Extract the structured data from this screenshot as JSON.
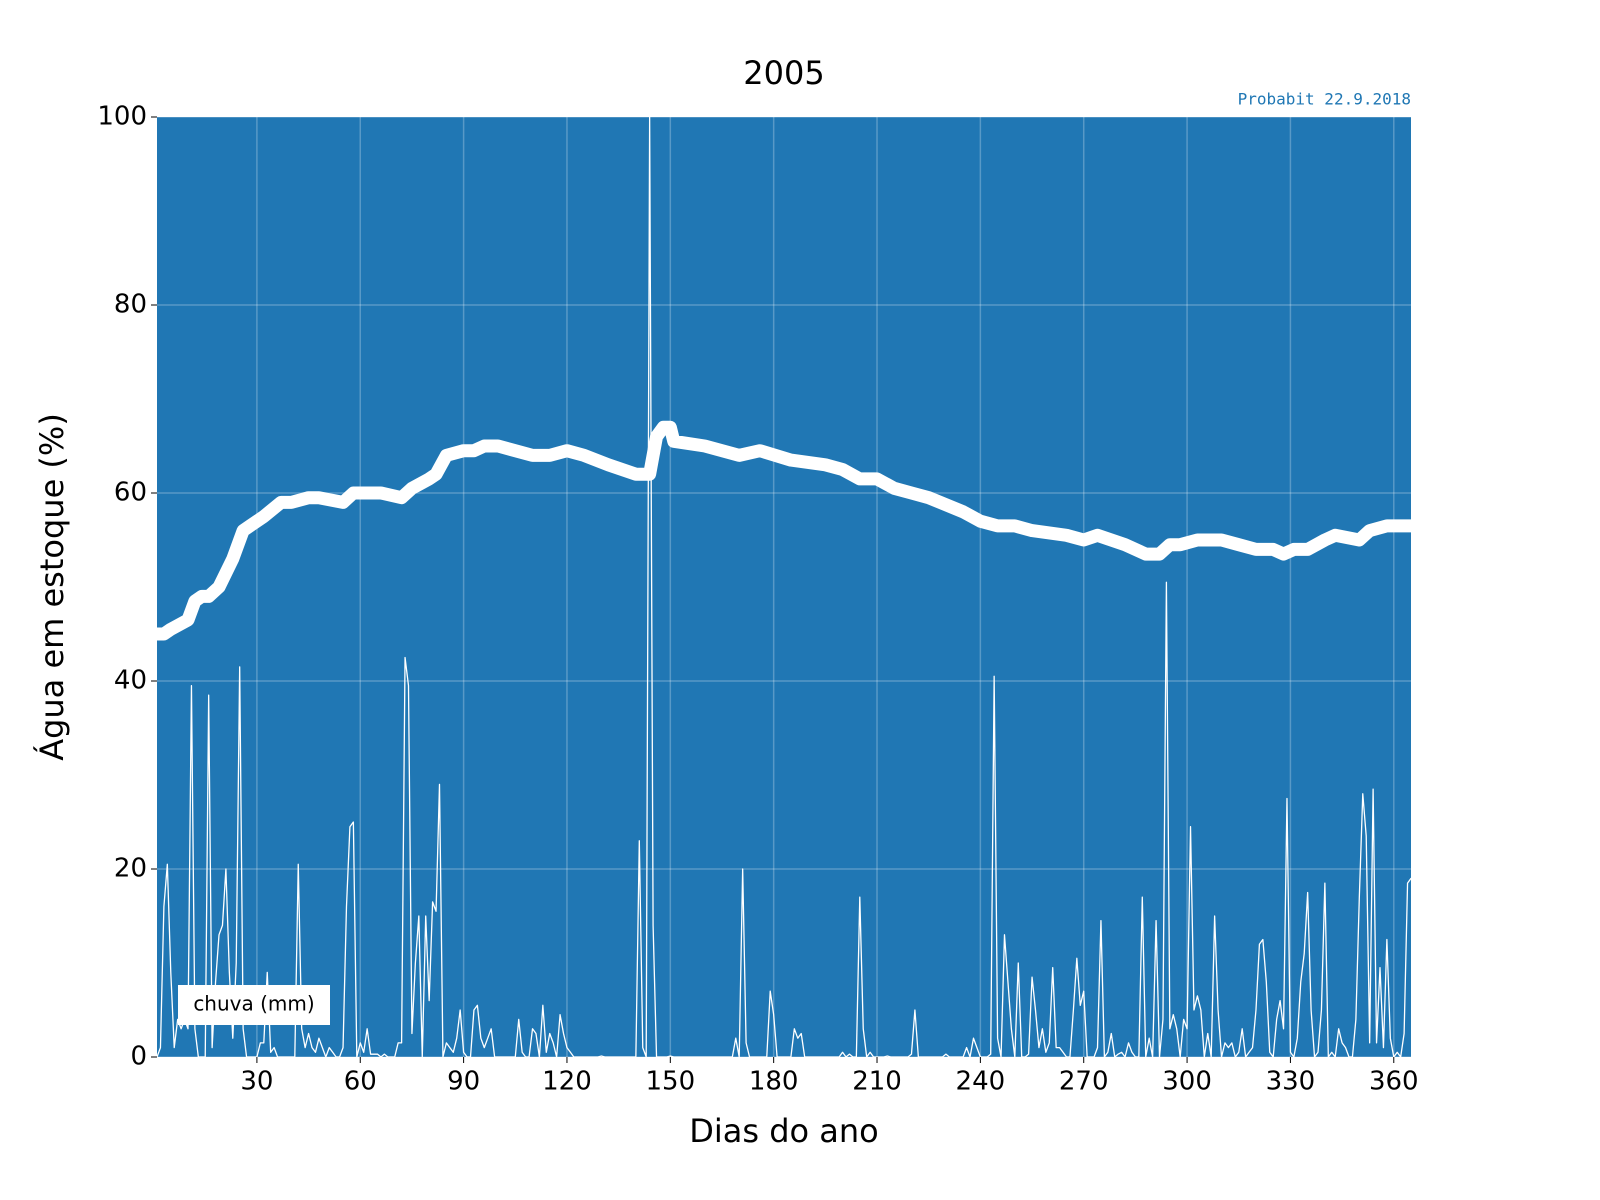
{
  "chart_data": {
    "type": "line",
    "title": "2005",
    "annotation": "Probabit 22.9.2018",
    "xlabel": "Dias do ano",
    "ylabel": "Água em estoque (%)",
    "xlim": [
      1,
      365
    ],
    "ylim": [
      0,
      100
    ],
    "xticks": [
      30,
      60,
      90,
      120,
      150,
      180,
      210,
      240,
      270,
      300,
      330,
      360
    ],
    "yticks": [
      0,
      20,
      40,
      60,
      80,
      100
    ],
    "grid": true,
    "legend": "lower left",
    "background": "#2077b4",
    "series": [
      {
        "color": "#ffffff",
        "x": [
          1,
          3,
          5,
          10,
          12,
          14,
          16,
          19,
          23,
          26,
          28,
          32,
          37,
          40,
          45,
          48,
          55,
          58,
          62,
          66,
          72,
          75,
          80,
          82,
          85,
          90,
          93,
          96,
          100,
          110,
          115,
          120,
          125,
          132,
          140,
          144,
          146,
          148,
          150,
          151,
          160,
          170,
          176,
          185,
          195,
          200,
          205,
          210,
          215,
          220,
          225,
          235,
          240,
          245,
          250,
          255,
          265,
          270,
          274,
          282,
          288,
          292,
          295,
          298,
          303,
          307,
          310,
          315,
          320,
          325,
          328,
          331,
          335,
          340,
          343,
          350,
          353,
          358,
          361,
          365
        ],
        "values": [
          45,
          45,
          45.5,
          46.5,
          48.5,
          49,
          49,
          50,
          53,
          56,
          56.5,
          57.5,
          59,
          59,
          59.5,
          59.5,
          59,
          60,
          60,
          60,
          59.5,
          60.5,
          61.5,
          62,
          64,
          64.5,
          64.5,
          65,
          65,
          64,
          64,
          64.5,
          64,
          63,
          62,
          62,
          66,
          67,
          67,
          65.5,
          65,
          64,
          64.5,
          63.5,
          63,
          62.5,
          61.5,
          61.5,
          60.5,
          60,
          59.5,
          58,
          57,
          56.5,
          56.5,
          56,
          55.5,
          55,
          55.5,
          54.5,
          53.5,
          53.5,
          54.5,
          54.5,
          55,
          55,
          55,
          54.5,
          54,
          54,
          53.5,
          54,
          54,
          55,
          55.5,
          55,
          56,
          56.5,
          56.5,
          56.5
        ]
      },
      {
        "name": "chuva (mm)",
        "color": "#ffffff",
        "x": [
          1,
          2,
          3,
          4,
          5,
          6,
          7,
          8,
          9,
          10,
          11,
          12,
          13,
          14,
          15,
          16,
          17,
          18,
          19,
          20,
          21,
          22,
          23,
          24,
          25,
          26,
          27,
          28,
          29,
          30,
          31,
          32,
          33,
          34,
          35,
          36,
          37,
          38,
          39,
          40,
          41,
          42,
          43,
          44,
          45,
          46,
          47,
          48,
          49,
          50,
          51,
          52,
          53,
          54,
          55,
          56,
          57,
          58,
          59,
          60,
          61,
          62,
          63,
          64,
          65,
          66,
          67,
          68,
          69,
          70,
          71,
          72,
          73,
          74,
          75,
          76,
          77,
          78,
          79,
          80,
          81,
          82,
          83,
          84,
          85,
          86,
          87,
          88,
          89,
          90,
          91,
          92,
          93,
          94,
          95,
          96,
          97,
          98,
          99,
          100,
          101,
          102,
          103,
          104,
          105,
          106,
          107,
          108,
          109,
          110,
          111,
          112,
          113,
          114,
          115,
          116,
          117,
          118,
          119,
          120,
          121,
          122,
          123,
          124,
          125,
          126,
          127,
          128,
          129,
          130,
          131,
          132,
          133,
          134,
          135,
          136,
          137,
          138,
          139,
          140,
          141,
          142,
          143,
          144,
          145,
          146,
          147,
          148,
          149,
          150,
          151,
          152,
          153,
          154,
          155,
          156,
          157,
          158,
          159,
          160,
          161,
          162,
          163,
          164,
          165,
          166,
          167,
          168,
          169,
          170,
          171,
          172,
          173,
          174,
          175,
          176,
          177,
          178,
          179,
          180,
          181,
          182,
          183,
          184,
          185,
          186,
          187,
          188,
          189,
          190,
          191,
          192,
          193,
          194,
          195,
          196,
          197,
          198,
          199,
          200,
          201,
          202,
          203,
          204,
          205,
          206,
          207,
          208,
          209,
          210,
          211,
          212,
          213,
          214,
          215,
          216,
          217,
          218,
          219,
          220,
          221,
          222,
          223,
          224,
          225,
          226,
          227,
          228,
          229,
          230,
          231,
          232,
          233,
          234,
          235,
          236,
          237,
          238,
          239,
          240,
          241,
          242,
          243,
          244,
          245,
          246,
          247,
          248,
          249,
          250,
          251,
          252,
          253,
          254,
          255,
          256,
          257,
          258,
          259,
          260,
          261,
          262,
          263,
          264,
          265,
          266,
          267,
          268,
          269,
          270,
          271,
          272,
          273,
          274,
          275,
          276,
          277,
          278,
          279,
          280,
          281,
          282,
          283,
          284,
          285,
          286,
          287,
          288,
          289,
          290,
          291,
          292,
          293,
          294,
          295,
          296,
          297,
          298,
          299,
          300,
          301,
          302,
          303,
          304,
          305,
          306,
          307,
          308,
          309,
          310,
          311,
          312,
          313,
          314,
          315,
          316,
          317,
          318,
          319,
          320,
          321,
          322,
          323,
          324,
          325,
          326,
          327,
          328,
          329,
          330,
          331,
          332,
          333,
          334,
          335,
          336,
          337,
          338,
          339,
          340,
          341,
          342,
          343,
          344,
          345,
          346,
          347,
          348,
          349,
          350,
          351,
          352,
          353,
          354,
          355,
          356,
          357,
          358,
          359,
          360,
          361,
          362,
          363,
          364,
          365
        ],
        "values": [
          0,
          1,
          16,
          20.5,
          9,
          1,
          4,
          3,
          4,
          3,
          39.5,
          3,
          0,
          0,
          0,
          38.5,
          1,
          8,
          13,
          14,
          20,
          9,
          2,
          10,
          41.5,
          3,
          0,
          0,
          0,
          0,
          1.5,
          1.5,
          9,
          0.5,
          1,
          0,
          0,
          0,
          0,
          0,
          0,
          20.5,
          3,
          1,
          2.5,
          1,
          0.5,
          2,
          1,
          0,
          1,
          0.5,
          0,
          0,
          1,
          16,
          24.5,
          25,
          0,
          1.5,
          0.5,
          3,
          0.3,
          0.3,
          0.3,
          0,
          0.3,
          0,
          0,
          0,
          1.5,
          1.5,
          42.5,
          39.5,
          2.5,
          10,
          15,
          0,
          15,
          6,
          16.5,
          15.5,
          29,
          0,
          1.5,
          1,
          0.5,
          2,
          5,
          0.5,
          0,
          0,
          5,
          5.5,
          2,
          1,
          2,
          3,
          0,
          0,
          0,
          0,
          0,
          0,
          0,
          4,
          0.5,
          0,
          0,
          3,
          2.5,
          0,
          5.5,
          0.5,
          2.5,
          1.5,
          0,
          4.5,
          2.5,
          1,
          0.5,
          0,
          0,
          0,
          0,
          0,
          0,
          0,
          0,
          0.1,
          0,
          0,
          0,
          0,
          0,
          0,
          0,
          0,
          0,
          0,
          23,
          1,
          0,
          100,
          14,
          0,
          0,
          0,
          0,
          0.1,
          0,
          0,
          0,
          0,
          0,
          0,
          0,
          0,
          0,
          0,
          0,
          0,
          0,
          0,
          0,
          0,
          0,
          0,
          2,
          0,
          20,
          1.5,
          0,
          0,
          0,
          0,
          0,
          0,
          7,
          4.5,
          0,
          0,
          0,
          0,
          0,
          3,
          2,
          2.5,
          0,
          0,
          0,
          0,
          0,
          0,
          0,
          0,
          0,
          0,
          0,
          0.5,
          0,
          0.3,
          0,
          0,
          17,
          3,
          0,
          0.5,
          0,
          0,
          0,
          0,
          0.1,
          0,
          0,
          0,
          0,
          0,
          0,
          0.3,
          5,
          0,
          0,
          0,
          0,
          0,
          0,
          0,
          0,
          0.3,
          0,
          0,
          0,
          0,
          0,
          1,
          0,
          2,
          1,
          0,
          0,
          0,
          0.3,
          40.5,
          2,
          0,
          13,
          8,
          3,
          0,
          10,
          0,
          0,
          0.3,
          8.5,
          5,
          1,
          3,
          0.5,
          1.5,
          9.5,
          1,
          1,
          0.5,
          0,
          0,
          5,
          10.5,
          5.5,
          7,
          0,
          0,
          0,
          1,
          14.5,
          0,
          0.5,
          2.5,
          0,
          0.3,
          0.5,
          0,
          1.5,
          0.5,
          0,
          0,
          17,
          0,
          2,
          0,
          14.5,
          0,
          4,
          50.5,
          3,
          4.5,
          3,
          0,
          4,
          3,
          24.5,
          5,
          6.5,
          5,
          0,
          2.5,
          0,
          15,
          5,
          0,
          1.5,
          1,
          1.5,
          0,
          0.5,
          3,
          0,
          0.5,
          1,
          5,
          12,
          12.5,
          8,
          0.5,
          0,
          4,
          6,
          3,
          27.5,
          0.5,
          0,
          2,
          8,
          11,
          17.5,
          5,
          0,
          0.5,
          5,
          18.5,
          0,
          0.5,
          0,
          3,
          1.5,
          1,
          0,
          0,
          4,
          17,
          28,
          23.5,
          1.5,
          28.5,
          1.5,
          9.5,
          1,
          12.5,
          2,
          0,
          0.5,
          0,
          2.5,
          18.5,
          19
        ]
      }
    ]
  }
}
